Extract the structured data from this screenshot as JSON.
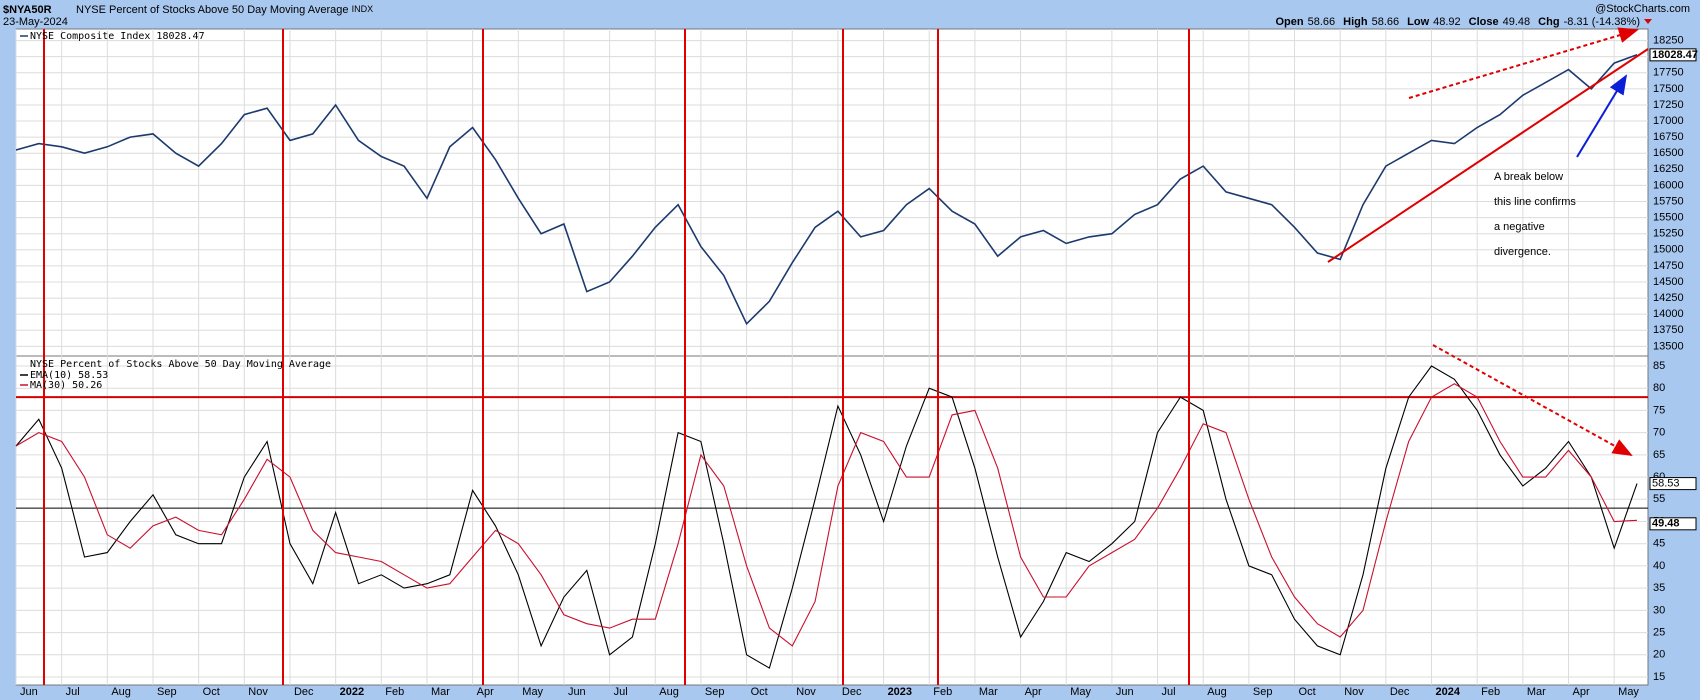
{
  "header": {
    "symbol": "$NYA50R",
    "name": "NYSE Percent of Stocks Above 50 Day Moving Average",
    "exchange": "INDX",
    "date": "23-May-2024",
    "source": "@StockCharts.com",
    "quote": [
      {
        "label": "Open",
        "value": "58.66"
      },
      {
        "label": "High",
        "value": "58.66"
      },
      {
        "label": "Low",
        "value": "48.92"
      },
      {
        "label": "Close",
        "value": "49.48"
      },
      {
        "label": "Chg",
        "value": "-8.31 (-14.38%)"
      }
    ]
  },
  "annotation": [
    "A break below",
    "this line confirms",
    "a negative",
    "divergence."
  ],
  "chart_data": [
    {
      "type": "line",
      "ylim": [
        13350,
        18430
      ],
      "yticks": [
        13500,
        13750,
        14000,
        14250,
        14500,
        14750,
        15000,
        15250,
        15500,
        15750,
        16000,
        16250,
        16500,
        16750,
        17000,
        17250,
        17500,
        17750,
        18000,
        18250
      ],
      "grid": true,
      "series": [
        {
          "name": "NYSE Composite Index 18028.47",
          "color": "#1c3a6e",
          "values": [
            16550,
            16650,
            16600,
            16500,
            16600,
            16750,
            16800,
            16500,
            16300,
            16650,
            17100,
            17200,
            16700,
            16800,
            17250,
            16700,
            16450,
            16300,
            15800,
            16600,
            16900,
            16400,
            15800,
            15250,
            15400,
            14350,
            14500,
            14900,
            15350,
            15700,
            15050,
            14600,
            13850,
            14200,
            14800,
            15350,
            15600,
            15200,
            15300,
            15700,
            15950,
            15600,
            15400,
            14900,
            15200,
            15300,
            15100,
            15200,
            15250,
            15550,
            15700,
            16100,
            16300,
            15900,
            15800,
            15700,
            15350,
            14950,
            14850,
            15700,
            16300,
            16500,
            16700,
            16650,
            16900,
            17100,
            17400,
            17600,
            17800,
            17500,
            17900,
            18028.47
          ]
        }
      ]
    },
    {
      "type": "line",
      "title": "NYSE Percent of Stocks Above 50 Day Moving Average",
      "ylim": [
        13.2,
        87.25
      ],
      "yticks": [
        15,
        20,
        25,
        30,
        35,
        40,
        45,
        50,
        55,
        60,
        65,
        70,
        75,
        80,
        85
      ],
      "grid": true,
      "x_tick_labels": [
        "Jun",
        "Jul",
        "Aug",
        "Sep",
        "Oct",
        "Nov",
        "Dec",
        "2022",
        "Feb",
        "Mar",
        "Apr",
        "May",
        "Jun",
        "Jul",
        "Aug",
        "Sep",
        "Oct",
        "Nov",
        "Dec",
        "2023",
        "Feb",
        "Mar",
        "Apr",
        "May",
        "Jun",
        "Jul",
        "Aug",
        "Sep",
        "Oct",
        "Nov",
        "Dec",
        "2024",
        "Feb",
        "Mar",
        "Apr",
        "May"
      ],
      "reference_lines": [
        {
          "value": 78,
          "color": "#d40000"
        },
        {
          "value": 53,
          "color": "#000000"
        }
      ],
      "last_value": 49.48,
      "series": [
        {
          "name": "EMA(10) 58.53",
          "color": "#000000",
          "values": [
            67,
            73,
            62,
            42,
            43,
            50,
            56,
            47,
            45,
            45,
            60,
            68,
            45,
            36,
            52,
            36,
            38,
            35,
            36,
            38,
            57,
            49,
            38,
            22,
            33,
            39,
            20,
            24,
            45,
            70,
            68,
            45,
            20,
            17,
            35,
            55,
            76,
            65,
            50,
            67,
            80,
            78,
            62,
            42,
            24,
            32,
            43,
            41,
            45,
            50,
            70,
            78,
            75,
            55,
            40,
            38,
            28,
            22,
            20,
            38,
            62,
            78,
            85,
            82,
            75,
            65,
            58,
            62,
            68,
            60,
            44,
            58.53
          ]
        },
        {
          "name": "MA(30) 50.26",
          "color": "#c8102e",
          "values": [
            67,
            70,
            68,
            60,
            47,
            44,
            49,
            51,
            48,
            47,
            55,
            64,
            60,
            48,
            43,
            42,
            41,
            38,
            35,
            36,
            42,
            48,
            45,
            38,
            29,
            27,
            26,
            28,
            28,
            45,
            65,
            58,
            40,
            26,
            22,
            32,
            58,
            70,
            68,
            60,
            60,
            74,
            75,
            62,
            42,
            33,
            33,
            40,
            43,
            46,
            53,
            62,
            72,
            70,
            55,
            42,
            33,
            27,
            24,
            30,
            50,
            68,
            78,
            81,
            78,
            68,
            60,
            60,
            66,
            60,
            50,
            50.26
          ]
        }
      ]
    }
  ]
}
